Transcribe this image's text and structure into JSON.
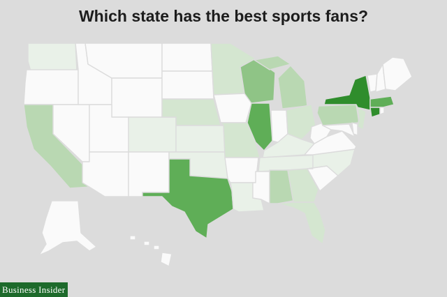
{
  "title": "Which state has the best sports fans?",
  "brand": "Business Insider",
  "colors": {
    "background": "#dcdcdc",
    "tier0": "#fafafa",
    "tier1": "#e9f1e8",
    "tier2": "#d4e6d0",
    "tier3": "#b9d8b2",
    "tier4": "#8fc486",
    "tier5": "#5fae57",
    "tier6": "#2f8d2c",
    "brand_bg": "#1d6a2b"
  },
  "states": [
    {
      "id": "WA",
      "tier": 1
    },
    {
      "id": "OR",
      "tier": 0
    },
    {
      "id": "CA",
      "tier": 3
    },
    {
      "id": "NV",
      "tier": 0
    },
    {
      "id": "ID",
      "tier": 0
    },
    {
      "id": "MT",
      "tier": 0
    },
    {
      "id": "WY",
      "tier": 0
    },
    {
      "id": "UT",
      "tier": 0
    },
    {
      "id": "AZ",
      "tier": 0
    },
    {
      "id": "CO",
      "tier": 1
    },
    {
      "id": "NM",
      "tier": 0
    },
    {
      "id": "ND",
      "tier": 0
    },
    {
      "id": "SD",
      "tier": 0
    },
    {
      "id": "NE",
      "tier": 2
    },
    {
      "id": "KS",
      "tier": 1
    },
    {
      "id": "OK",
      "tier": 1
    },
    {
      "id": "TX",
      "tier": 5
    },
    {
      "id": "MN",
      "tier": 2
    },
    {
      "id": "IA",
      "tier": 0
    },
    {
      "id": "MO",
      "tier": 2
    },
    {
      "id": "AR",
      "tier": 0
    },
    {
      "id": "LA",
      "tier": 1
    },
    {
      "id": "WI",
      "tier": 4
    },
    {
      "id": "IL",
      "tier": 5
    },
    {
      "id": "MI",
      "tier": 3
    },
    {
      "id": "IN",
      "tier": 0
    },
    {
      "id": "OH",
      "tier": 2
    },
    {
      "id": "KY",
      "tier": 1
    },
    {
      "id": "TN",
      "tier": 1
    },
    {
      "id": "MS",
      "tier": 0
    },
    {
      "id": "AL",
      "tier": 3
    },
    {
      "id": "GA",
      "tier": 2
    },
    {
      "id": "FL",
      "tier": 2
    },
    {
      "id": "SC",
      "tier": 0
    },
    {
      "id": "NC",
      "tier": 1
    },
    {
      "id": "VA",
      "tier": 0
    },
    {
      "id": "WV",
      "tier": 0
    },
    {
      "id": "PA",
      "tier": 3
    },
    {
      "id": "NY",
      "tier": 6
    },
    {
      "id": "VT",
      "tier": 0
    },
    {
      "id": "NH",
      "tier": 0
    },
    {
      "id": "ME",
      "tier": 0
    },
    {
      "id": "MA",
      "tier": 5
    },
    {
      "id": "CT",
      "tier": 6
    },
    {
      "id": "RI",
      "tier": 0
    },
    {
      "id": "NJ",
      "tier": 2
    },
    {
      "id": "DE",
      "tier": 0
    },
    {
      "id": "MD",
      "tier": 0
    },
    {
      "id": "AK",
      "tier": 0
    },
    {
      "id": "HI",
      "tier": 0
    }
  ]
}
